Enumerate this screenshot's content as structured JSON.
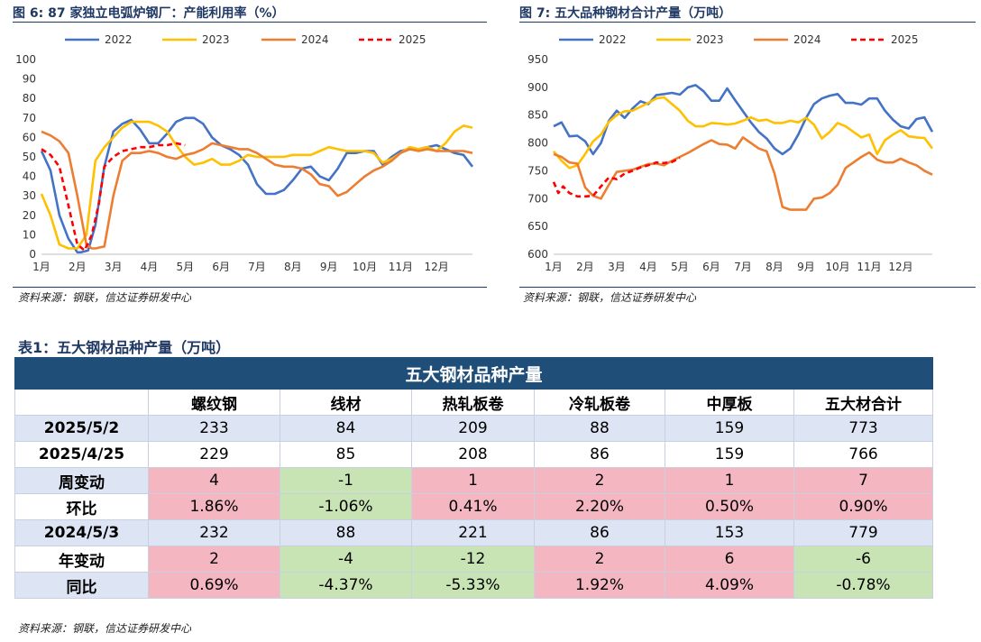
{
  "figures": [
    {
      "title": "图 6:  87 家独立电弧炉钢厂：产能利用率（%）",
      "source": "资料来源：钢联，信达证券研发中心"
    },
    {
      "title": "图 7:  五大品种钢材合计产量（万吨）",
      "source": "资料来源：钢联，信达证券研发中心"
    }
  ],
  "table": {
    "title": "表1：五大钢材品种产量（万吨）",
    "banner": "五大钢材品种产量",
    "columns": [
      "",
      "螺纹钢",
      "线材",
      "热轧板卷",
      "冷轧板卷",
      "中厚板",
      "五大材合计"
    ],
    "rows": [
      {
        "label": "2025/5/2",
        "values": [
          "233",
          "84",
          "209",
          "88",
          "159",
          "773"
        ],
        "colors": [
          "blue",
          "blue",
          "blue",
          "blue",
          "blue",
          "blue"
        ],
        "label_color": "blue"
      },
      {
        "label": "2025/4/25",
        "values": [
          "229",
          "85",
          "208",
          "86",
          "159",
          "766"
        ],
        "colors": [
          "white",
          "white",
          "white",
          "white",
          "white",
          "white"
        ],
        "label_color": "white"
      },
      {
        "label": "周变动",
        "values": [
          "4",
          "-1",
          "1",
          "2",
          "1",
          "7"
        ],
        "colors": [
          "pink",
          "green",
          "pink",
          "pink",
          "pink",
          "pink"
        ],
        "label_color": "blue"
      },
      {
        "label": "环比",
        "values": [
          "1.86%",
          "-1.06%",
          "0.41%",
          "2.20%",
          "0.50%",
          "0.90%"
        ],
        "colors": [
          "pink",
          "green",
          "pink",
          "pink",
          "pink",
          "pink"
        ],
        "label_color": "white"
      },
      {
        "label": "2024/5/3",
        "values": [
          "232",
          "88",
          "221",
          "86",
          "153",
          "779"
        ],
        "colors": [
          "blue",
          "blue",
          "blue",
          "blue",
          "blue",
          "blue"
        ],
        "label_color": "blue"
      },
      {
        "label": "年变动",
        "values": [
          "2",
          "-4",
          "-12",
          "2",
          "6",
          "-6"
        ],
        "colors": [
          "pink",
          "green",
          "green",
          "pink",
          "pink",
          "green"
        ],
        "label_color": "white"
      },
      {
        "label": "同比",
        "values": [
          "0.69%",
          "-4.37%",
          "-5.33%",
          "1.92%",
          "4.09%",
          "-0.78%"
        ],
        "colors": [
          "pink",
          "green",
          "green",
          "pink",
          "pink",
          "green"
        ],
        "label_color": "blue"
      }
    ],
    "source": "资料来源：钢联，信达证券研发中心"
  },
  "chart_data": [
    {
      "type": "line",
      "title": "87 家独立电弧炉钢厂：产能利用率（%）",
      "x_unit": "week-of-year position (months 1月–12月)",
      "x_ticks": [
        "1月",
        "2月",
        "3月",
        "4月",
        "5月",
        "6月",
        "7月",
        "8月",
        "9月",
        "10月",
        "11月",
        "12月"
      ],
      "xlim": [
        1,
        13
      ],
      "ylim": [
        0,
        100
      ],
      "y_ticks": [
        0,
        10,
        20,
        30,
        40,
        50,
        60,
        70,
        80,
        90,
        100
      ],
      "grid": false,
      "legend_position": "top",
      "series": [
        {
          "name": "2022",
          "color": "#4472c4",
          "dash": false,
          "x": [
            1.0,
            1.25,
            1.5,
            1.75,
            2.0,
            2.1,
            2.3,
            2.5,
            2.75,
            3.0,
            3.25,
            3.5,
            3.75,
            4.0,
            4.25,
            4.5,
            4.75,
            5.0,
            5.25,
            5.5,
            5.75,
            6.0,
            6.25,
            6.5,
            6.75,
            7.0,
            7.25,
            7.5,
            7.75,
            8.0,
            8.25,
            8.5,
            8.75,
            9.0,
            9.25,
            9.5,
            9.75,
            10.0,
            10.25,
            10.5,
            10.75,
            11.0,
            11.25,
            11.5,
            11.75,
            12.0,
            12.25,
            12.5,
            12.75,
            13.0
          ],
          "y": [
            53,
            43,
            20,
            8,
            1,
            1,
            2,
            15,
            45,
            63,
            67,
            69,
            64,
            57,
            57,
            62,
            68,
            70,
            70,
            67,
            60,
            56,
            54,
            51,
            46,
            36,
            31,
            31,
            33,
            38,
            44,
            45,
            40,
            38,
            44,
            52,
            52,
            53,
            53,
            46,
            50,
            53,
            54,
            54,
            55,
            56,
            54,
            52,
            51,
            45
          ]
        },
        {
          "name": "2023",
          "color": "#ffc000",
          "dash": false,
          "x": [
            1.0,
            1.25,
            1.5,
            1.75,
            2.0,
            2.25,
            2.5,
            2.75,
            3.0,
            3.25,
            3.5,
            3.75,
            4.0,
            4.25,
            4.5,
            4.75,
            5.0,
            5.25,
            5.5,
            5.75,
            6.0,
            6.25,
            6.5,
            6.75,
            7.0,
            7.25,
            7.5,
            7.75,
            8.0,
            8.25,
            8.5,
            8.75,
            9.0,
            9.25,
            9.5,
            9.75,
            10.0,
            10.25,
            10.5,
            10.75,
            11.0,
            11.25,
            11.5,
            11.75,
            12.0,
            12.25,
            12.5,
            12.75,
            13.0
          ],
          "y": [
            31,
            20,
            5,
            3,
            3,
            10,
            48,
            55,
            60,
            65,
            68,
            68,
            68,
            66,
            63,
            56,
            50,
            46,
            47,
            49,
            46,
            46,
            48,
            51,
            50,
            50,
            50,
            50,
            51,
            51,
            51,
            53,
            55,
            54,
            53,
            53,
            53,
            52,
            47,
            49,
            52,
            55,
            54,
            55,
            53,
            57,
            63,
            66,
            65
          ]
        },
        {
          "name": "2024",
          "color": "#ed7d31",
          "dash": false,
          "x": [
            1.0,
            1.25,
            1.5,
            1.75,
            2.0,
            2.25,
            2.4,
            2.5,
            2.75,
            3.0,
            3.25,
            3.5,
            3.75,
            4.0,
            4.25,
            4.5,
            4.75,
            5.0,
            5.25,
            5.5,
            5.75,
            6.0,
            6.25,
            6.5,
            6.75,
            7.0,
            7.25,
            7.5,
            7.75,
            8.0,
            8.25,
            8.5,
            8.75,
            9.0,
            9.25,
            9.5,
            9.75,
            10.0,
            10.25,
            10.5,
            10.75,
            11.0,
            11.25,
            11.5,
            11.75,
            12.0,
            12.25,
            12.5,
            12.75,
            13.0
          ],
          "y": [
            63,
            61,
            58,
            52,
            30,
            5,
            3,
            3,
            4,
            30,
            48,
            52,
            52,
            53,
            52,
            50,
            49,
            51,
            52,
            54,
            57,
            56,
            55,
            54,
            54,
            52,
            49,
            46,
            45,
            45,
            44,
            41,
            36,
            35,
            30,
            32,
            36,
            40,
            43,
            45,
            48,
            52,
            54,
            53,
            54,
            53,
            53,
            53,
            53,
            52
          ]
        },
        {
          "name": "2025",
          "color": "#ff0000",
          "dash": true,
          "x": [
            1.0,
            1.25,
            1.5,
            1.75,
            2.0,
            2.2,
            2.4,
            2.6,
            2.75,
            3.0,
            3.25,
            3.5,
            3.75,
            4.0,
            4.25,
            4.5,
            4.75,
            5.0
          ],
          "y": [
            54,
            51,
            45,
            25,
            5,
            2,
            10,
            26,
            45,
            50,
            53,
            54,
            55,
            55,
            56,
            56,
            57,
            56
          ]
        }
      ]
    },
    {
      "type": "line",
      "title": "五大品种钢材合计产量（万吨）",
      "x_unit": "week-of-year position (months 1月–12月)",
      "x_ticks": [
        "1月",
        "2月",
        "3月",
        "4月",
        "5月",
        "6月",
        "7月",
        "8月",
        "9月",
        "10月",
        "11月",
        "12月"
      ],
      "xlim": [
        1,
        13
      ],
      "ylim": [
        600,
        950
      ],
      "y_ticks": [
        600,
        650,
        700,
        750,
        800,
        850,
        900,
        950
      ],
      "grid": false,
      "legend_position": "top",
      "series": [
        {
          "name": "2022",
          "color": "#4472c4",
          "dash": false,
          "x": [
            1.0,
            1.25,
            1.5,
            1.75,
            2.0,
            2.25,
            2.5,
            2.75,
            3.0,
            3.25,
            3.5,
            3.75,
            4.0,
            4.25,
            4.5,
            4.75,
            5.0,
            5.25,
            5.5,
            5.75,
            6.0,
            6.25,
            6.5,
            6.75,
            7.0,
            7.25,
            7.5,
            7.75,
            8.0,
            8.25,
            8.5,
            8.75,
            9.0,
            9.25,
            9.5,
            9.75,
            10.0,
            10.25,
            10.5,
            10.75,
            11.0,
            11.25,
            11.5,
            11.75,
            12.0,
            12.25,
            12.5,
            12.75,
            13.0
          ],
          "y": [
            830,
            837,
            812,
            813,
            803,
            780,
            800,
            840,
            858,
            845,
            862,
            875,
            870,
            886,
            888,
            890,
            887,
            900,
            904,
            893,
            876,
            876,
            898,
            877,
            857,
            837,
            820,
            808,
            790,
            780,
            790,
            815,
            845,
            870,
            880,
            885,
            888,
            872,
            872,
            869,
            880,
            880,
            858,
            842,
            830,
            826,
            843,
            846,
            820
          ]
        },
        {
          "name": "2023",
          "color": "#ffc000",
          "dash": false,
          "x": [
            1.0,
            1.25,
            1.5,
            1.75,
            2.0,
            2.25,
            2.5,
            2.75,
            3.0,
            3.25,
            3.5,
            3.75,
            4.0,
            4.25,
            4.5,
            4.75,
            5.0,
            5.25,
            5.5,
            5.75,
            6.0,
            6.25,
            6.5,
            6.75,
            7.0,
            7.25,
            7.5,
            7.75,
            8.0,
            8.25,
            8.5,
            8.75,
            9.0,
            9.25,
            9.5,
            9.75,
            10.0,
            10.25,
            10.5,
            10.75,
            11.0,
            11.25,
            11.5,
            11.75,
            12.0,
            12.25,
            12.5,
            12.75,
            13.0
          ],
          "y": [
            785,
            768,
            755,
            760,
            780,
            803,
            815,
            838,
            850,
            857,
            858,
            865,
            872,
            880,
            882,
            870,
            858,
            840,
            830,
            830,
            836,
            835,
            833,
            835,
            840,
            846,
            840,
            842,
            836,
            836,
            840,
            837,
            845,
            833,
            808,
            820,
            836,
            830,
            820,
            810,
            815,
            780,
            805,
            815,
            823,
            812,
            810,
            809,
            790
          ]
        },
        {
          "name": "2024",
          "color": "#ed7d31",
          "dash": false,
          "x": [
            1.0,
            1.25,
            1.5,
            1.75,
            2.0,
            2.25,
            2.5,
            2.75,
            3.0,
            3.25,
            3.5,
            3.75,
            4.0,
            4.25,
            4.5,
            4.75,
            5.0,
            5.25,
            5.5,
            5.75,
            6.0,
            6.25,
            6.5,
            6.75,
            7.0,
            7.25,
            7.5,
            7.75,
            8.0,
            8.25,
            8.5,
            8.75,
            9.0,
            9.25,
            9.5,
            9.75,
            10.0,
            10.25,
            10.5,
            10.75,
            11.0,
            11.25,
            11.5,
            11.75,
            12.0,
            12.25,
            12.5,
            12.75,
            13.0
          ],
          "y": [
            780,
            775,
            765,
            763,
            720,
            705,
            700,
            725,
            748,
            750,
            752,
            757,
            762,
            763,
            760,
            768,
            775,
            782,
            790,
            798,
            805,
            798,
            797,
            790,
            810,
            800,
            790,
            785,
            745,
            685,
            680,
            680,
            680,
            700,
            702,
            710,
            725,
            755,
            765,
            775,
            783,
            770,
            765,
            765,
            772,
            765,
            760,
            750,
            743
          ]
        },
        {
          "name": "2025",
          "color": "#ff0000",
          "dash": true,
          "x": [
            1.0,
            1.15,
            1.3,
            1.5,
            1.75,
            2.0,
            2.25,
            2.5,
            2.75,
            3.0,
            3.25,
            3.5,
            3.75,
            4.0,
            4.25,
            4.5,
            4.75,
            5.0
          ],
          "y": [
            730,
            710,
            722,
            710,
            704,
            704,
            705,
            722,
            738,
            735,
            745,
            750,
            756,
            760,
            765,
            764,
            766,
            773
          ]
        }
      ]
    }
  ]
}
